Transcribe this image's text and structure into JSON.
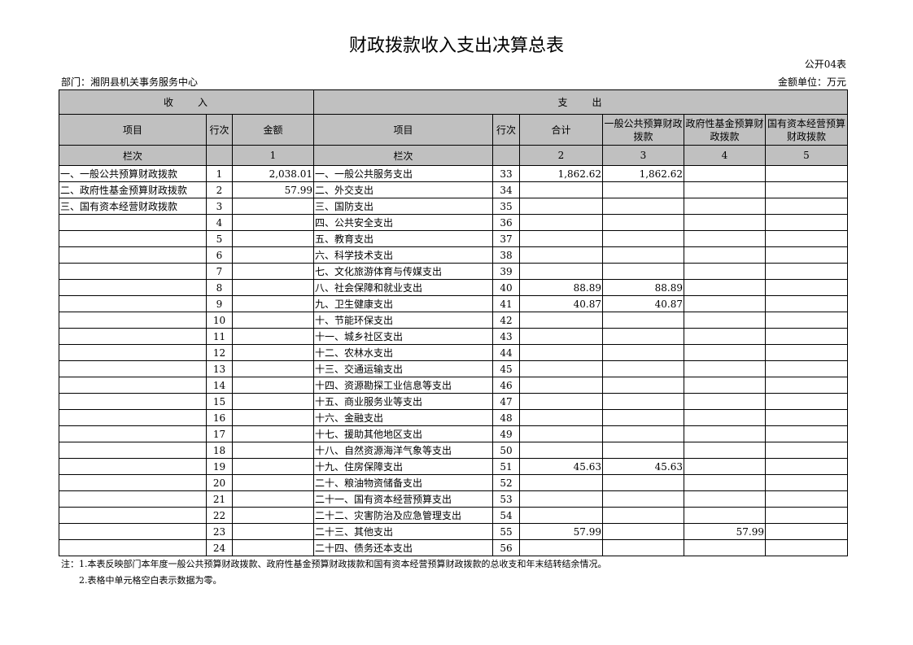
{
  "title": "财政拨款收入支出决算总表",
  "form_code": "公开04表",
  "department": "部门：湘阴县机关事务服务中心",
  "unit": "金额单位：万元",
  "headers": {
    "income": "收　　入",
    "expense": "支　　出",
    "item": "项目",
    "row_no": "行次",
    "amount": "金额",
    "total": "合计",
    "general": "一般公共预算财政拨款",
    "fund": "政府性基金预算财政拨款",
    "state": "国有资本经营预算财政拨款",
    "col_label": "栏次",
    "c1": "1",
    "c2": "2",
    "c3": "3",
    "c4": "4",
    "c5": "5"
  },
  "rows": [
    {
      "in_item": "一、一般公共预算财政拨款",
      "in_no": "1",
      "in_amt": "2,038.01",
      "ex_item": "一、一般公共服务支出",
      "ex_no": "33",
      "total": "1,862.62",
      "general": "1,862.62",
      "fund": "",
      "state": ""
    },
    {
      "in_item": "二、政府性基金预算财政拨款",
      "in_no": "2",
      "in_amt": "57.99",
      "ex_item": "二、外交支出",
      "ex_no": "34",
      "total": "",
      "general": "",
      "fund": "",
      "state": ""
    },
    {
      "in_item": "三、国有资本经营财政拨款",
      "in_no": "3",
      "in_amt": "",
      "ex_item": "三、国防支出",
      "ex_no": "35",
      "total": "",
      "general": "",
      "fund": "",
      "state": ""
    },
    {
      "in_item": "",
      "in_no": "4",
      "in_amt": "",
      "ex_item": "四、公共安全支出",
      "ex_no": "36",
      "total": "",
      "general": "",
      "fund": "",
      "state": ""
    },
    {
      "in_item": "",
      "in_no": "5",
      "in_amt": "",
      "ex_item": "五、教育支出",
      "ex_no": "37",
      "total": "",
      "general": "",
      "fund": "",
      "state": ""
    },
    {
      "in_item": "",
      "in_no": "6",
      "in_amt": "",
      "ex_item": "六、科学技术支出",
      "ex_no": "38",
      "total": "",
      "general": "",
      "fund": "",
      "state": ""
    },
    {
      "in_item": "",
      "in_no": "7",
      "in_amt": "",
      "ex_item": "七、文化旅游体育与传媒支出",
      "ex_no": "39",
      "total": "",
      "general": "",
      "fund": "",
      "state": ""
    },
    {
      "in_item": "",
      "in_no": "8",
      "in_amt": "",
      "ex_item": "八、社会保障和就业支出",
      "ex_no": "40",
      "total": "88.89",
      "general": "88.89",
      "fund": "",
      "state": ""
    },
    {
      "in_item": "",
      "in_no": "9",
      "in_amt": "",
      "ex_item": "九、卫生健康支出",
      "ex_no": "41",
      "total": "40.87",
      "general": "40.87",
      "fund": "",
      "state": ""
    },
    {
      "in_item": "",
      "in_no": "10",
      "in_amt": "",
      "ex_item": "十、节能环保支出",
      "ex_no": "42",
      "total": "",
      "general": "",
      "fund": "",
      "state": ""
    },
    {
      "in_item": "",
      "in_no": "11",
      "in_amt": "",
      "ex_item": "十一、城乡社区支出",
      "ex_no": "43",
      "total": "",
      "general": "",
      "fund": "",
      "state": ""
    },
    {
      "in_item": "",
      "in_no": "12",
      "in_amt": "",
      "ex_item": "十二、农林水支出",
      "ex_no": "44",
      "total": "",
      "general": "",
      "fund": "",
      "state": ""
    },
    {
      "in_item": "",
      "in_no": "13",
      "in_amt": "",
      "ex_item": "十三、交通运输支出",
      "ex_no": "45",
      "total": "",
      "general": "",
      "fund": "",
      "state": ""
    },
    {
      "in_item": "",
      "in_no": "14",
      "in_amt": "",
      "ex_item": "十四、资源勘探工业信息等支出",
      "ex_no": "46",
      "total": "",
      "general": "",
      "fund": "",
      "state": ""
    },
    {
      "in_item": "",
      "in_no": "15",
      "in_amt": "",
      "ex_item": "十五、商业服务业等支出",
      "ex_no": "47",
      "total": "",
      "general": "",
      "fund": "",
      "state": ""
    },
    {
      "in_item": "",
      "in_no": "16",
      "in_amt": "",
      "ex_item": "十六、金融支出",
      "ex_no": "48",
      "total": "",
      "general": "",
      "fund": "",
      "state": ""
    },
    {
      "in_item": "",
      "in_no": "17",
      "in_amt": "",
      "ex_item": "十七、援助其他地区支出",
      "ex_no": "49",
      "total": "",
      "general": "",
      "fund": "",
      "state": ""
    },
    {
      "in_item": "",
      "in_no": "18",
      "in_amt": "",
      "ex_item": "十八、自然资源海洋气象等支出",
      "ex_no": "50",
      "total": "",
      "general": "",
      "fund": "",
      "state": ""
    },
    {
      "in_item": "",
      "in_no": "19",
      "in_amt": "",
      "ex_item": "十九、住房保障支出",
      "ex_no": "51",
      "total": "45.63",
      "general": "45.63",
      "fund": "",
      "state": ""
    },
    {
      "in_item": "",
      "in_no": "20",
      "in_amt": "",
      "ex_item": "二十、粮油物资储备支出",
      "ex_no": "52",
      "total": "",
      "general": "",
      "fund": "",
      "state": ""
    },
    {
      "in_item": "",
      "in_no": "21",
      "in_amt": "",
      "ex_item": "二十一、国有资本经营预算支出",
      "ex_no": "53",
      "total": "",
      "general": "",
      "fund": "",
      "state": ""
    },
    {
      "in_item": "",
      "in_no": "22",
      "in_amt": "",
      "ex_item": "二十二、灾害防治及应急管理支出",
      "ex_no": "54",
      "total": "",
      "general": "",
      "fund": "",
      "state": ""
    },
    {
      "in_item": "",
      "in_no": "23",
      "in_amt": "",
      "ex_item": "二十三、其他支出",
      "ex_no": "55",
      "total": "57.99",
      "general": "",
      "fund": "57.99",
      "state": ""
    },
    {
      "in_item": "",
      "in_no": "24",
      "in_amt": "",
      "ex_item": "二十四、债务还本支出",
      "ex_no": "56",
      "total": "",
      "general": "",
      "fund": "",
      "state": ""
    }
  ],
  "notes": [
    "注：1.本表反映部门本年度一般公共预算财政拨款、政府性基金预算财政拨款和国有资本经营预算财政拨款的总收支和年末结转结余情况。",
    "　　2.表格中单元格空白表示数据为零。"
  ]
}
